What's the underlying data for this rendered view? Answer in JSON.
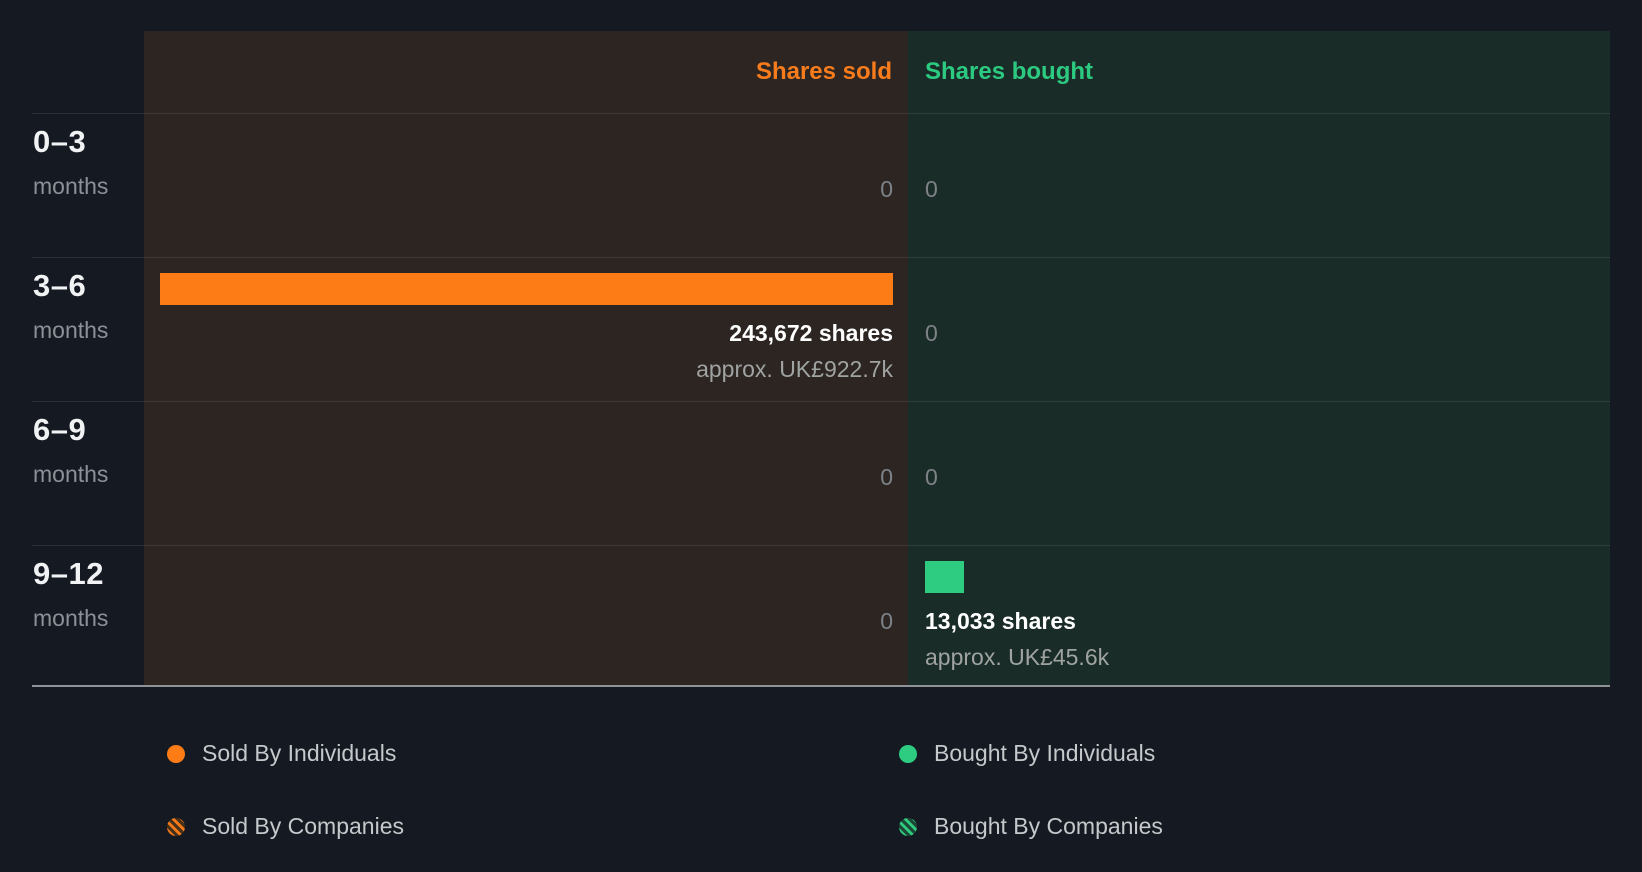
{
  "chart_data": {
    "type": "bar",
    "orientation": "horizontal",
    "categories": [
      "0–3 months",
      "3–6 months",
      "6–9 months",
      "9–12 months"
    ],
    "series": [
      {
        "name": "Shares sold",
        "color": "#fd7c16",
        "values": [
          0,
          243672,
          0,
          0
        ]
      },
      {
        "name": "Shares bought",
        "color": "#2ecc81",
        "values": [
          0,
          0,
          0,
          13033
        ]
      }
    ],
    "xlim": [
      0,
      243672
    ],
    "legend_position": "bottom",
    "grid": "horizontal-row-dividers"
  },
  "header": {
    "sold": "Shares sold",
    "bought": "Shares bought"
  },
  "rows": [
    {
      "period": "0–3",
      "unit": "months",
      "sold": {
        "text": "0"
      },
      "bought": {
        "text": "0"
      }
    },
    {
      "period": "3–6",
      "unit": "months",
      "sold": {
        "text": "243,672 shares",
        "approx": "approx. UK£922.7k"
      },
      "bought": {
        "text": "0"
      }
    },
    {
      "period": "6–9",
      "unit": "months",
      "sold": {
        "text": "0"
      },
      "bought": {
        "text": "0"
      }
    },
    {
      "period": "9–12",
      "unit": "months",
      "sold": {
        "text": "0"
      },
      "bought": {
        "text": "13,033 shares",
        "approx": "approx. UK£45.6k"
      }
    }
  ],
  "legend": {
    "items": [
      {
        "label": "Sold By Individuals"
      },
      {
        "label": "Sold By Companies"
      },
      {
        "label": "Bought By Individuals"
      },
      {
        "label": "Bought By Companies"
      }
    ]
  },
  "colors": {
    "page_background": "#151a22",
    "sold_panel": "#2c2522",
    "bought_panel": "#1a2c27",
    "sold_accent": "#f87c1c",
    "bought_accent": "#2cca80",
    "sold_bar": "#fd7c16",
    "bought_bar": "#2ecc81"
  }
}
